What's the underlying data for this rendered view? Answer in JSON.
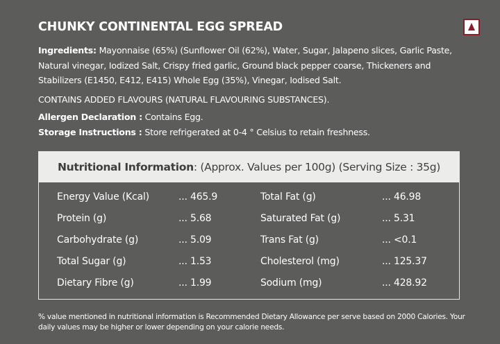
{
  "title": "CHUNKY CONTINENTAL EGG SPREAD",
  "ingredients": {
    "label": "Ingredients:",
    "text": " Mayonnaise (65%) (Sunflower Oil (62%), Water, Sugar, Jalapeno slices, Garlic Paste, Natural vinegar, Iodized Salt, Crispy fried garlic, Ground black pepper coarse, Thickeners and Stabilizers (E1450, E412, E415) Whole Egg (35%), Vinegar, Iodised Salt."
  },
  "flavours": "CONTAINS ADDED FLAVOURS (NATURAL FLAVOURING SUBSTANCES).",
  "allergen": {
    "label": "Allergen Declaration :",
    "text": " Contains Egg."
  },
  "storage": {
    "label": "Storage Instructions :",
    "text": " Store refrigerated at 0-4 ° Celsius to retain freshness."
  },
  "nutrition": {
    "header_bold": "Nutritional Information",
    "header_rest": ": (Approx. Values per 100g) (Serving Size : 35g)",
    "left": [
      {
        "name": "Energy Value (Kcal)",
        "value": "... 465.9"
      },
      {
        "name": "Protein (g)",
        "value": "... 5.68"
      },
      {
        "name": "Carbohydrate (g)",
        "value": "... 5.09"
      },
      {
        "name": "Total Sugar (g)",
        "value": "... 1.53"
      },
      {
        "name": "Dietary Fibre (g)",
        "value": "... 1.99"
      }
    ],
    "right": [
      {
        "name": "Total Fat (g)",
        "value": "... 46.98"
      },
      {
        "name": "Saturated Fat (g)",
        "value": "... 5.31"
      },
      {
        "name": "Trans Fat (g)",
        "value": "... <0.1"
      },
      {
        "name": "Cholesterol (mg)",
        "value": "... 125.37"
      },
      {
        "name": "Sodium (mg)",
        "value": "... 428.92"
      }
    ]
  },
  "footnote": "% value mentioned in nutritional information is Recommended Dietary Allowance per serve based on 2000 Calories. Your daily values may be higher or lower depending on your calorie needs.",
  "colors": {
    "background": "#5c5c5b",
    "header_band": "#ececea",
    "non_veg_mark": "#8b1e2a"
  },
  "icons": {
    "diet_mark": "non-veg-triangle-icon"
  }
}
